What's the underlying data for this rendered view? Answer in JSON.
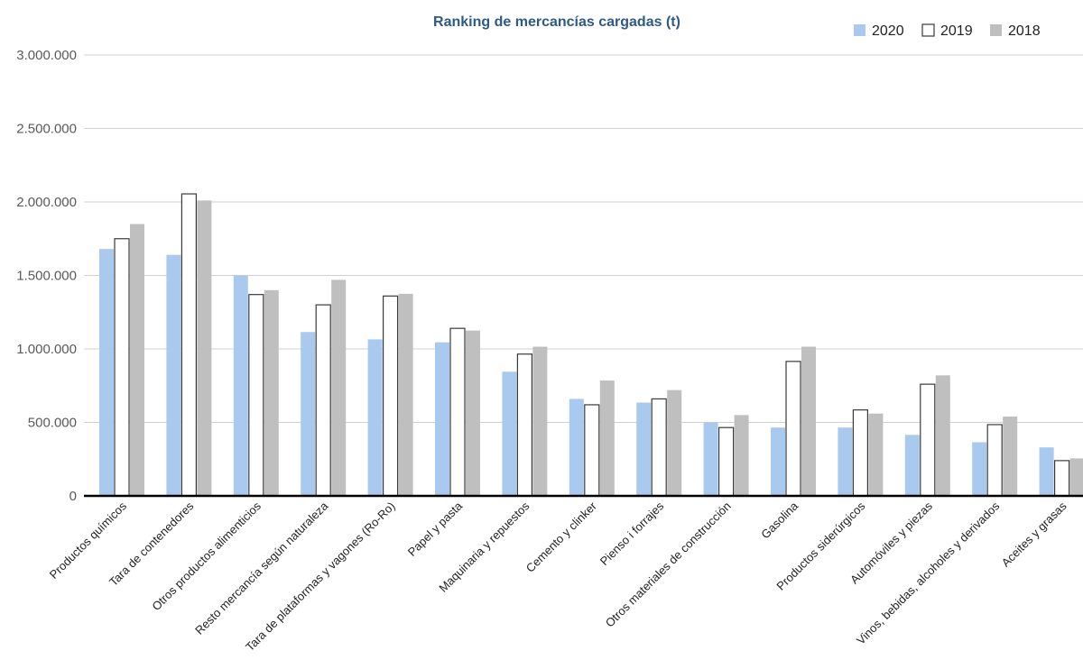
{
  "chart_data": {
    "type": "bar",
    "title": "Ranking de mercancías cargadas (t)",
    "xlabel": "",
    "ylabel": "",
    "ylim": [
      0,
      3000000
    ],
    "yticks": [
      0,
      500000,
      1000000,
      1500000,
      2000000,
      2500000,
      3000000
    ],
    "ytick_labels": [
      "0",
      "500.000",
      "1.000.000",
      "1.500.000",
      "2.000.000",
      "2.500.000",
      "3.000.000"
    ],
    "grid": true,
    "legend_position": "top-right",
    "categories": [
      "Productos químicos",
      "Tara de contenedores",
      "Otros productos alimenticios",
      "Resto mercancía según naturaleza",
      "Tara de plataformas y vagones (Ro-Ro)",
      "Papel y pasta",
      "Maquinaria y repuestos",
      "Cemento y clinker",
      "Pienso i forrajes",
      "Otros materiales de construcción",
      "Gasolina",
      "Productos siderúrgicos",
      "Automóviles y piezas",
      "Vinos, bebidas, alcoholes y derivados",
      "Aceites y grasas"
    ],
    "series": [
      {
        "name": "2020",
        "color": "#A9C9EE",
        "stroke": "#A9C9EE",
        "values": [
          1680000,
          1640000,
          1500000,
          1115000,
          1065000,
          1045000,
          845000,
          660000,
          635000,
          500000,
          465000,
          465000,
          415000,
          365000,
          330000
        ]
      },
      {
        "name": "2019",
        "color": "#FFFFFF",
        "stroke": "#3a3a3a",
        "values": [
          1750000,
          2055000,
          1370000,
          1300000,
          1360000,
          1140000,
          965000,
          620000,
          660000,
          465000,
          915000,
          585000,
          760000,
          485000,
          240000
        ]
      },
      {
        "name": "2018",
        "color": "#BFBFBF",
        "stroke": "#BFBFBF",
        "values": [
          1850000,
          2010000,
          1400000,
          1470000,
          1375000,
          1125000,
          1015000,
          785000,
          720000,
          550000,
          1015000,
          560000,
          820000,
          540000,
          255000
        ]
      }
    ]
  }
}
